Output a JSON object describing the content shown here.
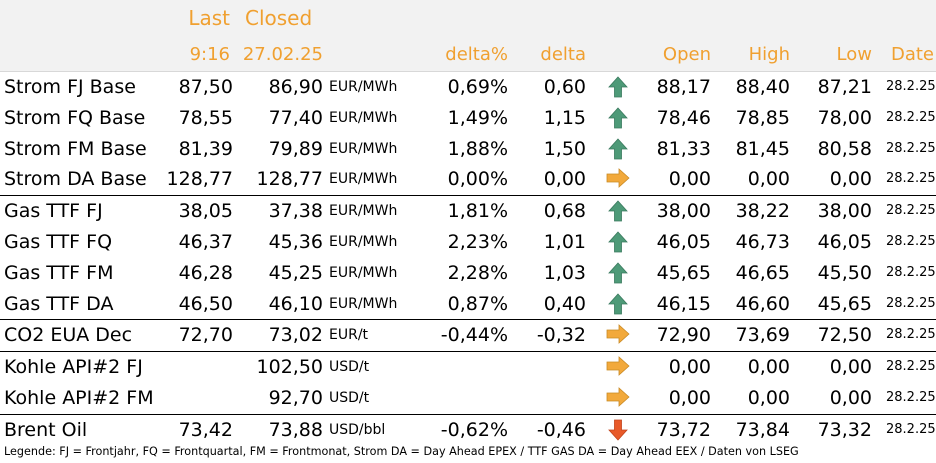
{
  "header": {
    "last_label": "Last",
    "closed_label": "Closed",
    "last_time": "9:16",
    "closed_date": "27.02.25",
    "delta_pct_label": "delta%",
    "delta_label": "delta",
    "open_label": "Open",
    "high_label": "High",
    "low_label": "Low",
    "date_label": "Date"
  },
  "colors": {
    "header_text": "#f0a030",
    "header_bg": "#f2f2f2",
    "arrow_up": "#4e9a78",
    "arrow_right": "#f2a93b",
    "arrow_down": "#e85a2a"
  },
  "rows": [
    {
      "name": "Strom FJ Base",
      "last": "87,50",
      "closed": "86,90",
      "unit": "EUR/MWh",
      "delta_pct": "0,69%",
      "delta": "0,60",
      "arrow": "up",
      "open": "88,17",
      "high": "88,40",
      "low": "87,21",
      "date": "28.2.25"
    },
    {
      "name": "Strom FQ Base",
      "last": "78,55",
      "closed": "77,40",
      "unit": "EUR/MWh",
      "delta_pct": "1,49%",
      "delta": "1,15",
      "arrow": "up",
      "open": "78,46",
      "high": "78,85",
      "low": "78,00",
      "date": "28.2.25"
    },
    {
      "name": "Strom FM Base",
      "last": "81,39",
      "closed": "79,89",
      "unit": "EUR/MWh",
      "delta_pct": "1,88%",
      "delta": "1,50",
      "arrow": "up",
      "open": "81,33",
      "high": "81,45",
      "low": "80,58",
      "date": "28.2.25"
    },
    {
      "name": "Strom DA Base",
      "last": "128,77",
      "closed": "128,77",
      "unit": "EUR/MWh",
      "delta_pct": "0,00%",
      "delta": "0,00",
      "arrow": "right",
      "open": "0,00",
      "high": "0,00",
      "low": "0,00",
      "date": "28.2.25"
    },
    {
      "name": "Gas TTF FJ",
      "last": "38,05",
      "closed": "37,38",
      "unit": "EUR/MWh",
      "delta_pct": "1,81%",
      "delta": "0,68",
      "arrow": "up",
      "open": "38,00",
      "high": "38,22",
      "low": "38,00",
      "date": "28.2.25"
    },
    {
      "name": "Gas TTF FQ",
      "last": "46,37",
      "closed": "45,36",
      "unit": "EUR/MWh",
      "delta_pct": "2,23%",
      "delta": "1,01",
      "arrow": "up",
      "open": "46,05",
      "high": "46,73",
      "low": "46,05",
      "date": "28.2.25"
    },
    {
      "name": "Gas TTF FM",
      "last": "46,28",
      "closed": "45,25",
      "unit": "EUR/MWh",
      "delta_pct": "2,28%",
      "delta": "1,03",
      "arrow": "up",
      "open": "45,65",
      "high": "46,65",
      "low": "45,50",
      "date": "28.2.25"
    },
    {
      "name": "Gas TTF DA",
      "last": "46,50",
      "closed": "46,10",
      "unit": "EUR/MWh",
      "delta_pct": "0,87%",
      "delta": "0,40",
      "arrow": "up",
      "open": "46,15",
      "high": "46,60",
      "low": "45,65",
      "date": "28.2.25"
    },
    {
      "name": "CO2 EUA Dec",
      "last": "72,70",
      "closed": "73,02",
      "unit": "EUR/t",
      "delta_pct": "-0,44%",
      "delta": "-0,32",
      "arrow": "right",
      "open": "72,90",
      "high": "73,69",
      "low": "72,50",
      "date": "28.2.25"
    },
    {
      "name": "Kohle API#2 FJ",
      "last": "",
      "closed": "102,50",
      "unit": "USD/t",
      "delta_pct": "",
      "delta": "",
      "arrow": "right",
      "open": "0,00",
      "high": "0,00",
      "low": "0,00",
      "date": "28.2.25"
    },
    {
      "name": "Kohle API#2 FM",
      "last": "",
      "closed": "92,70",
      "unit": "USD/t",
      "delta_pct": "",
      "delta": "",
      "arrow": "right",
      "open": "0,00",
      "high": "0,00",
      "low": "0,00",
      "date": "28.2.25"
    },
    {
      "name": "Brent Oil",
      "last": "73,42",
      "closed": "73,88",
      "unit": "USD/bbl",
      "delta_pct": "-0,62%",
      "delta": "-0,46",
      "arrow": "down",
      "open": "73,72",
      "high": "73,84",
      "low": "73,32",
      "date": "28.2.25"
    }
  ],
  "legend": "Legende: FJ = Frontjahr, FQ = Frontquartal, FM = Frontmonat, Strom DA = Day Ahead EPEX / TTF GAS DA = Day Ahead EEX / Daten von LSEG"
}
